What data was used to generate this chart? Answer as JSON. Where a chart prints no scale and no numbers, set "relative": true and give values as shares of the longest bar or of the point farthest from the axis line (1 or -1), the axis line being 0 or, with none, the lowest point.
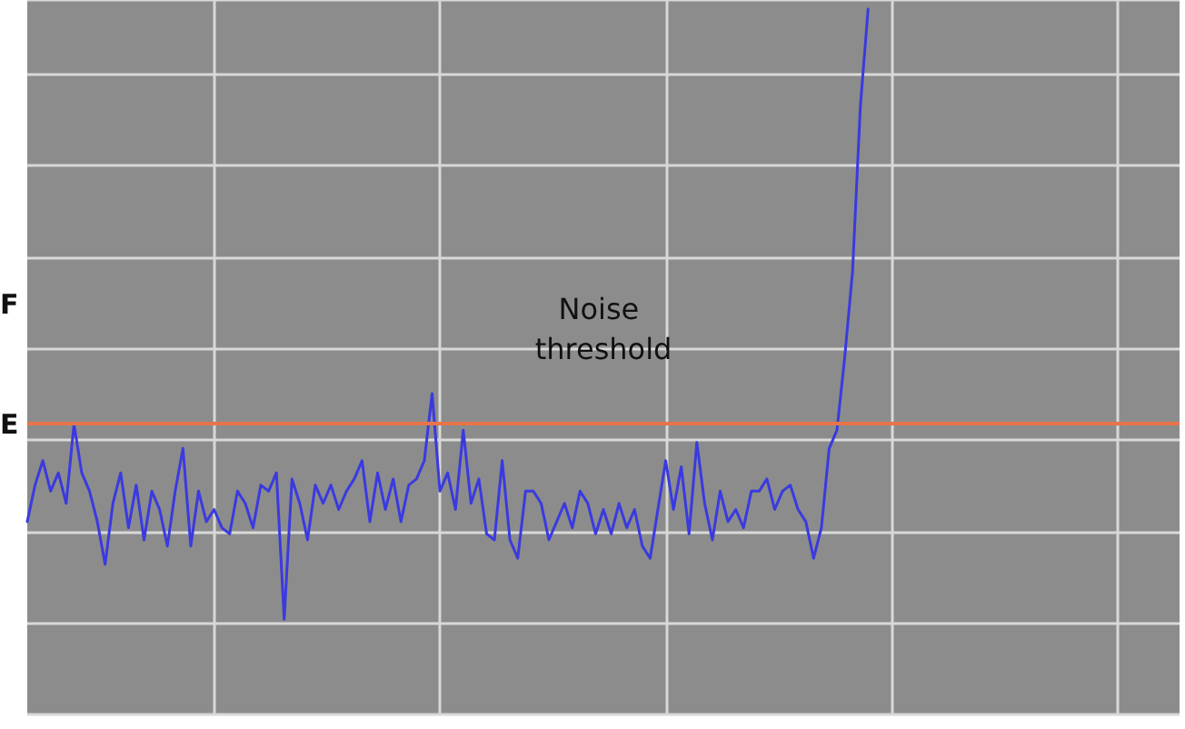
{
  "chart_data": {
    "type": "line",
    "relative": true,
    "grid": true,
    "marker": "none",
    "line_style": "solid",
    "annotations": [
      "F",
      "E"
    ],
    "ref_lines": [
      {
        "axis": "y",
        "value": 0.32,
        "label": "Noise threshold",
        "color": "#e8744a"
      }
    ],
    "categories": [
      null,
      null,
      null,
      null,
      null,
      null,
      null,
      null,
      null,
      null,
      null,
      null,
      null,
      null,
      null,
      null,
      null,
      null,
      null,
      null,
      null,
      null,
      null,
      null,
      null,
      null,
      null,
      null,
      null,
      null,
      null,
      null,
      null,
      null,
      null,
      null,
      null,
      null,
      null,
      null,
      null,
      null,
      null,
      null,
      null,
      null,
      null,
      null,
      null,
      null,
      null,
      null,
      null,
      null,
      null,
      null,
      null,
      null,
      null,
      null,
      null,
      null,
      null,
      null,
      null,
      null,
      null,
      null,
      null,
      null,
      null,
      null,
      null,
      null,
      null,
      null,
      null,
      null,
      null,
      null,
      null,
      null,
      null,
      null,
      null,
      null,
      null,
      null,
      null,
      null,
      null,
      null,
      null,
      null,
      null,
      null,
      null,
      null,
      null,
      null,
      null,
      null,
      null,
      null,
      null,
      null,
      null,
      null,
      null,
      null,
      null,
      null,
      null,
      null,
      null,
      null,
      null,
      null,
      null,
      null,
      null,
      null,
      null,
      null,
      null,
      null,
      null,
      null,
      null,
      null,
      null,
      null,
      null,
      null,
      null,
      null,
      null,
      null,
      null,
      null,
      null,
      null,
      null,
      null,
      null,
      null,
      null,
      null,
      null
    ],
    "series": [
      {
        "color": "#3a3ae0",
        "values": [
          0.16,
          0.22,
          0.26,
          0.21,
          0.24,
          0.19,
          0.32,
          0.24,
          0.21,
          0.16,
          0.09,
          0.19,
          0.24,
          0.15,
          0.22,
          0.13,
          0.21,
          0.18,
          0.12,
          0.21,
          0.28,
          0.12,
          0.21,
          0.16,
          0.18,
          0.15,
          0.14,
          0.21,
          0.19,
          0.15,
          0.22,
          0.21,
          0.24,
          0,
          0.23,
          0.19,
          0.13,
          0.22,
          0.19,
          0.22,
          0.18,
          0.21,
          0.23,
          0.26,
          0.16,
          0.24,
          0.18,
          0.23,
          0.16,
          0.22,
          0.23,
          0.26,
          0.37,
          0.21,
          0.24,
          0.18,
          0.31,
          0.19,
          0.23,
          0.14,
          0.13,
          0.26,
          0.13,
          0.1,
          0.21,
          0.21,
          0.19,
          0.13,
          0.16,
          0.19,
          0.15,
          0.21,
          0.19,
          0.14,
          0.18,
          0.14,
          0.19,
          0.15,
          0.18,
          0.12,
          0.1,
          0.18,
          0.26,
          0.18,
          0.25,
          0.14,
          0.29,
          0.19,
          0.13,
          0.21,
          0.16,
          0.18,
          0.15,
          0.21,
          0.21,
          0.23,
          0.18,
          0.21,
          0.22,
          0.18,
          0.16,
          0.1,
          0.15,
          0.28,
          0.31,
          0.43,
          0.57,
          0.84,
          1,
          null,
          null,
          null,
          null,
          null,
          null,
          null,
          null,
          null,
          null,
          null,
          null,
          null,
          null,
          null,
          null,
          null,
          null,
          null,
          null,
          null,
          null,
          null,
          null,
          null,
          null,
          null,
          null,
          null,
          null,
          null,
          null,
          null,
          null,
          null,
          null,
          null,
          null,
          null,
          null
        ]
      }
    ]
  }
}
